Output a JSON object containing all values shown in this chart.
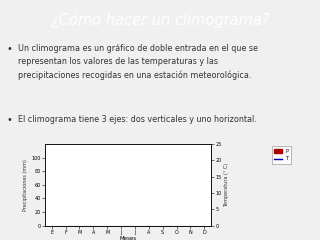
{
  "title": "¿Cómo hacer un climograma?",
  "title_bg": "#4a9aaa",
  "title_color": "white",
  "bullet1_bg": "#f5dede",
  "bullet1_text": "Un climograma es un gráfico de doble entrada en el que se\nrepresentan los valores de las temperaturas y las\nprecipitaciones recogidas en una estación meteorológica.",
  "bullet2_bg": "#ddeef5",
  "bullet2_text": "El climograma tiene 3 ejes: dos verticales y uno horizontal.",
  "body_bg": "#f0f0f0",
  "months": [
    "E",
    "F",
    "M",
    "A",
    "M",
    "J",
    "J",
    "A",
    "S",
    "O",
    "N",
    "D"
  ],
  "xlabel": "Meses",
  "ylabel_left": "Precipitaciones (mm)",
  "ylabel_right": "Temperatura (° C)",
  "ylim_left": [
    0,
    120
  ],
  "ylim_right": [
    0,
    25
  ],
  "yticks_left": [
    0,
    20,
    40,
    60,
    80,
    100
  ],
  "yticks_right": [
    0,
    5,
    10,
    15,
    20,
    25
  ],
  "legend_label_bar": "P",
  "legend_label_line": "T",
  "bar_color": "#aa0000",
  "line_color": "#0000aa",
  "text_color": "#333333"
}
